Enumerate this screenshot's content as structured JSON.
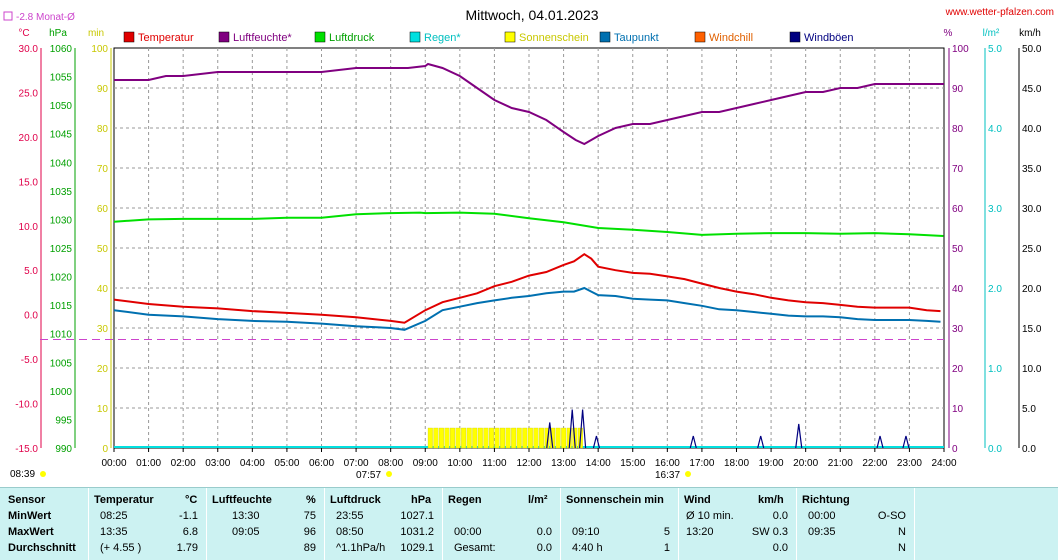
{
  "site": "www.wetter-pfalzen.com",
  "monthly_avg_label": "-2.8 Monat-Ø",
  "sunrise_label": "08:39",
  "sunrise_marker": "07:57",
  "sunset_marker": "16:37",
  "colors": {
    "temperature": "#e00000",
    "humidity": "#800080",
    "pressure": "#00e000",
    "rain": "#00e0e0",
    "sunshine": "#ffff00",
    "dewpoint": "#0070b0",
    "windchill": "#ff6000",
    "gusts": "#000080",
    "avg_line": "#cc44cc"
  },
  "axis_units": {
    "temp": "°C",
    "pressure": "hPa",
    "minutes": "min",
    "percent": "%",
    "rain": "l/m²",
    "wind": "km/h"
  },
  "chart_data": {
    "type": "line",
    "title": "Mittwoch, 04.01.2023",
    "x_labels": [
      "00:00",
      "01:00",
      "02:00",
      "03:00",
      "04:00",
      "05:00",
      "06:00",
      "07:00",
      "08:00",
      "09:00",
      "10:00",
      "11:00",
      "12:00",
      "13:00",
      "14:00",
      "15:00",
      "16:00",
      "17:00",
      "18:00",
      "19:00",
      "20:00",
      "21:00",
      "22:00",
      "23:00",
      "24:00"
    ],
    "axes": {
      "temp": {
        "label": "°C",
        "range": [
          -15,
          30
        ],
        "ticks": [
          "30.0",
          "25.0",
          "20.0",
          "15.0",
          "10.0",
          "5.0",
          "0.0",
          "-5.0",
          "-10.0",
          "-15.0"
        ]
      },
      "pressure": {
        "label": "hPa",
        "range": [
          990,
          1060
        ],
        "ticks": [
          "1060",
          "1055",
          "1050",
          "1045",
          "1040",
          "1035",
          "1030",
          "1025",
          "1020",
          "1015",
          "1010",
          "1005",
          "1000",
          "995",
          "990"
        ]
      },
      "minutes": {
        "label": "min",
        "range": [
          0,
          100
        ],
        "ticks": [
          "100",
          "90",
          "80",
          "70",
          "60",
          "50",
          "40",
          "30",
          "20",
          "10",
          "0"
        ]
      },
      "percent": {
        "label": "%",
        "range": [
          0,
          100
        ],
        "ticks": [
          "100",
          "90",
          "80",
          "70",
          "60",
          "50",
          "40",
          "30",
          "20",
          "10",
          "0"
        ]
      },
      "rain": {
        "label": "l/m²",
        "range": [
          0,
          5
        ],
        "ticks": [
          "5.0",
          "4.0",
          "3.0",
          "2.0",
          "1.0",
          "0.0"
        ]
      },
      "wind": {
        "label": "km/h",
        "range": [
          0,
          50
        ],
        "ticks": [
          "50.0",
          "45.0",
          "40.0",
          "35.0",
          "30.0",
          "25.0",
          "20.0",
          "15.0",
          "10.0",
          "5.0",
          "0.0"
        ]
      }
    },
    "legend": [
      "Temperatur",
      "Luftfeuchte*",
      "Luftdruck",
      "Regen*",
      "Sonnenschein",
      "Taupunkt",
      "Windchill",
      "Windböen"
    ],
    "monthly_average_temp": -2.8,
    "series": [
      {
        "name": "Temperatur",
        "axis": "temp",
        "color": "#e00000",
        "x": [
          0,
          1,
          2,
          3,
          4,
          5,
          6,
          7,
          8,
          8.4,
          9,
          9.5,
          10,
          10.5,
          11,
          11.5,
          12,
          12.5,
          13,
          13.3,
          13.6,
          13.8,
          14,
          14.5,
          15,
          15.5,
          16,
          16.5,
          17,
          17.5,
          18,
          18.5,
          19,
          19.5,
          20,
          20.5,
          21,
          21.5,
          22,
          22.5,
          23,
          23.5,
          23.9
        ],
        "y": [
          1.7,
          1.2,
          0.9,
          0.7,
          0.4,
          0.2,
          0.0,
          -0.3,
          -0.7,
          -0.9,
          0.5,
          1.4,
          1.9,
          2.4,
          3.2,
          3.7,
          4.4,
          4.8,
          5.6,
          6.0,
          6.8,
          6.3,
          5.4,
          5.0,
          4.7,
          4.6,
          4.3,
          4.0,
          3.5,
          3.0,
          2.6,
          2.3,
          1.9,
          1.6,
          1.4,
          1.3,
          1.1,
          0.9,
          0.8,
          0.8,
          0.8,
          0.5,
          0.4
        ]
      },
      {
        "name": "Luftfeuchte*",
        "axis": "percent",
        "color": "#800080",
        "x": [
          0,
          1,
          1.5,
          2,
          3,
          4,
          5,
          6,
          7,
          8,
          8.5,
          9,
          9.08,
          9.5,
          10,
          10.5,
          11,
          11.5,
          12,
          12.5,
          13,
          13.35,
          13.6,
          14,
          14.5,
          15,
          15.5,
          16,
          16.5,
          17,
          17.5,
          18,
          18.5,
          19,
          19.5,
          20,
          20.5,
          21,
          21.5,
          22,
          22.5,
          23,
          24
        ],
        "y": [
          92,
          92,
          93,
          93,
          94,
          94,
          94,
          94,
          95,
          95,
          95,
          95.5,
          96,
          95,
          93,
          90,
          87,
          85,
          84,
          82,
          79,
          77,
          76,
          78,
          80,
          81,
          81,
          82,
          83,
          84,
          84,
          85,
          86,
          87,
          88,
          89,
          89,
          90,
          90,
          91,
          91,
          91,
          91
        ]
      },
      {
        "name": "Luftdruck",
        "axis": "pressure",
        "color": "#00e000",
        "x": [
          0,
          1,
          2,
          3,
          4,
          5,
          6,
          7,
          8,
          8.85,
          9,
          10,
          11,
          12,
          13,
          14,
          15,
          16,
          17,
          18,
          19,
          20,
          21,
          22,
          23,
          23.98
        ],
        "y": [
          1029.6,
          1030.0,
          1030.1,
          1030.1,
          1030.1,
          1030.3,
          1030.3,
          1030.9,
          1031.1,
          1031.2,
          1031.1,
          1031.2,
          1031.0,
          1030.2,
          1029.5,
          1028.5,
          1028.2,
          1027.8,
          1027.3,
          1027.5,
          1027.6,
          1027.6,
          1027.5,
          1027.6,
          1027.4,
          1027.1
        ]
      },
      {
        "name": "Taupunkt",
        "axis": "temp",
        "color": "#0070b0",
        "x": [
          0,
          1,
          2,
          3,
          4,
          5,
          6,
          7,
          8,
          8.4,
          9,
          9.5,
          10,
          10.5,
          11,
          11.5,
          12,
          12.5,
          13,
          13.3,
          13.6,
          13.8,
          14,
          14.5,
          15,
          15.5,
          16,
          16.5,
          17,
          17.5,
          18,
          18.5,
          19,
          19.5,
          20,
          20.5,
          21,
          21.5,
          22,
          22.5,
          23,
          23.5,
          23.9
        ],
        "y": [
          0.5,
          0.0,
          -0.2,
          -0.5,
          -0.7,
          -0.8,
          -1.0,
          -1.3,
          -1.5,
          -1.7,
          -0.7,
          0.5,
          0.9,
          1.3,
          1.6,
          1.9,
          2.1,
          2.4,
          2.6,
          2.6,
          3.0,
          2.6,
          2.2,
          2.1,
          1.8,
          1.7,
          1.6,
          1.3,
          1.0,
          0.6,
          0.5,
          0.3,
          0.1,
          -0.1,
          -0.2,
          -0.2,
          -0.3,
          -0.5,
          -0.6,
          -0.6,
          -0.6,
          -0.7,
          -0.8
        ]
      }
    ],
    "sunshine": {
      "axis": "minutes",
      "color": "#ffff00",
      "x_start": 9.08,
      "x_end": 13.58,
      "values": [
        5,
        5,
        5,
        5,
        5,
        5,
        5,
        5,
        5,
        5,
        5,
        5,
        5,
        5,
        5,
        5,
        5,
        5,
        5,
        5,
        5,
        5,
        5,
        5,
        5,
        5,
        5,
        5
      ]
    },
    "gust_spikes": {
      "axis": "wind",
      "color": "#000080",
      "x": [
        12.6,
        13.25,
        13.55,
        13.95,
        16.75,
        18.7,
        19.8,
        22.15,
        22.9
      ],
      "y": [
        3.2,
        4.8,
        4.8,
        1.5,
        1.5,
        1.5,
        3.0,
        1.5,
        1.5
      ]
    }
  },
  "table": {
    "headers": {
      "sensor": "Sensor",
      "temp": "Temperatur",
      "temp_unit": "°C",
      "hum": "Luftfeuchte",
      "hum_unit": "%",
      "pres": "Luftdruck",
      "pres_unit": "hPa",
      "rain": "Regen",
      "rain_unit": "l/m²",
      "sun": "Sonnenschein min",
      "wind": "Wind",
      "wind_unit": "km/h",
      "dir": "Richtung"
    },
    "rows": [
      {
        "label": "MinWert",
        "temp_time": "08:25",
        "temp_val": "-1.1",
        "hum_time": "13:30",
        "hum_val": "75",
        "pres_time": "23:55",
        "pres_val": "1027.1",
        "rain_time": "",
        "rain_val": "",
        "sun_time": "",
        "sun_val": "",
        "wind_time": "Ø 10 min.",
        "wind_val": "0.0",
        "dir_time": "00:00",
        "dir_val": "O-SO"
      },
      {
        "label": "MaxWert",
        "temp_time": "13:35",
        "temp_val": "6.8",
        "hum_time": "09:05",
        "hum_val": "96",
        "pres_time": "08:50",
        "pres_val": "1031.2",
        "rain_time": "00:00",
        "rain_val": "0.0",
        "sun_time": "09:10",
        "sun_val": "5",
        "wind_time": "13:20",
        "wind_val": "SW 0.3",
        "dir_time": "09:35",
        "dir_val": "N"
      },
      {
        "label": "Durchschnitt",
        "temp_time": "(+ 4.55 )",
        "temp_val": "1.79",
        "hum_time": "",
        "hum_val": "89",
        "pres_time": "^1.1hPa/h",
        "pres_val": "1029.1",
        "rain_time": "Gesamt:",
        "rain_val": "0.0",
        "sun_time": "4:40 h",
        "sun_val": "1",
        "wind_time": "",
        "wind_val": "0.0",
        "dir_time": "",
        "dir_val": "N"
      }
    ]
  }
}
